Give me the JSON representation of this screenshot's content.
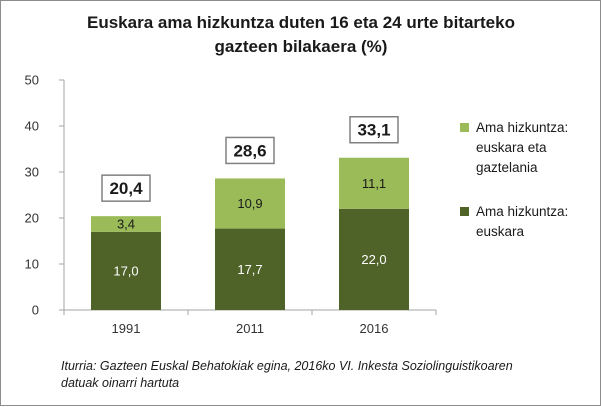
{
  "title_line1": "Euskara ama hizkuntza duten 16 eta 24 urte bitarteko",
  "title_line2": "gazteen bilakaera (%)",
  "source_line1": "Iturria: Gazteen Euskal Behatokiak egina, 2016ko VI. Inkesta Soziolinguistikoaren",
  "source_line2": "datuak oinarri hartuta",
  "colors": {
    "dark": "#4f6228",
    "light": "#9bbb59",
    "axis": "#a6a6a6",
    "box_border": "#808080"
  },
  "chart_data": {
    "type": "bar",
    "stacked": true,
    "categories": [
      "1991",
      "2011",
      "2016"
    ],
    "series": [
      {
        "name": "Ama hizkuntza: euskara",
        "values": [
          17.0,
          17.7,
          22.0
        ],
        "labels": [
          "17,0",
          "17,7",
          "22,0"
        ],
        "color": "#4f6228"
      },
      {
        "name": "Ama hizkuntza: euskara eta gaztelania",
        "values": [
          3.4,
          10.9,
          11.1
        ],
        "labels": [
          "3,4",
          "10,9",
          "11,1"
        ],
        "color": "#9bbb59"
      }
    ],
    "totals": [
      "20,4",
      "28,6",
      "33,1"
    ],
    "ylim": [
      0,
      50
    ],
    "yticks": [
      0,
      10,
      20,
      30,
      40,
      50
    ],
    "grid": false,
    "legend_position": "right",
    "legend": [
      {
        "lines": [
          "Ama hizkuntza:",
          "euskara eta",
          "gaztelania"
        ],
        "color": "#9bbb59"
      },
      {
        "lines": [
          "Ama hizkuntza:",
          "euskara"
        ],
        "color": "#4f6228"
      }
    ]
  }
}
